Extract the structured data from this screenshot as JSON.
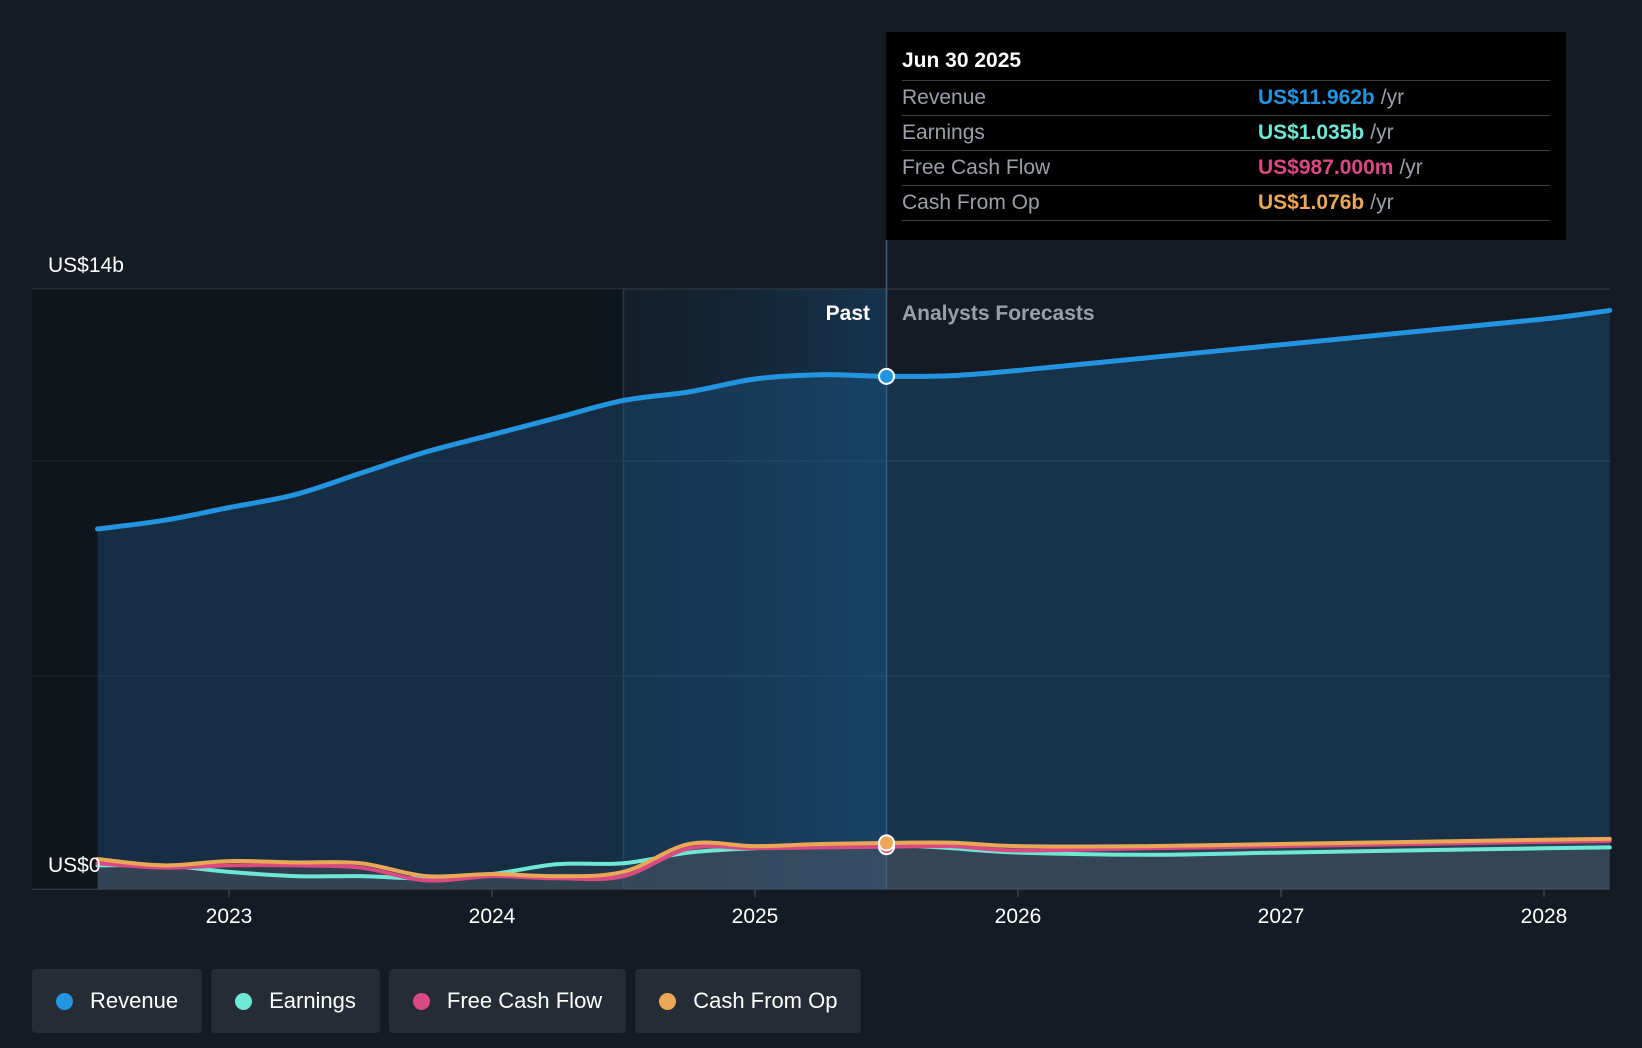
{
  "colors": {
    "revenue": "#2394df",
    "earnings": "#6ee7d6",
    "free_cash_flow": "#d94a82",
    "cash_from_op": "#eaa857",
    "background": "#151b24"
  },
  "tooltip": {
    "date": "Jun 30 2025",
    "rows": [
      {
        "label": "Revenue",
        "value": "US$11.962b",
        "unit": "/yr"
      },
      {
        "label": "Earnings",
        "value": "US$1.035b",
        "unit": "/yr"
      },
      {
        "label": "Free Cash Flow",
        "value": "US$987.000m",
        "unit": "/yr"
      },
      {
        "label": "Cash From Op",
        "value": "US$1.076b",
        "unit": "/yr"
      }
    ]
  },
  "legend": [
    {
      "label": "Revenue",
      "color": "#2394df"
    },
    {
      "label": "Earnings",
      "color": "#6ee7d6"
    },
    {
      "label": "Free Cash Flow",
      "color": "#d94a82"
    },
    {
      "label": "Cash From Op",
      "color": "#eaa857"
    }
  ],
  "chart_data": {
    "type": "line",
    "y_max_label": "US$14b",
    "y_min_label": "US$0",
    "ylim": [
      0,
      14
    ],
    "x_ticks": [
      "2023",
      "2024",
      "2025",
      "2026",
      "2027",
      "2028"
    ],
    "past_label": "Past",
    "forecast_label": "Analysts Forecasts",
    "divider_x": 2025.5,
    "highlight_start": 2024.5,
    "series": [
      {
        "name": "Revenue",
        "key": "revenue",
        "points": [
          [
            2022.5,
            8.4
          ],
          [
            2022.75,
            8.6
          ],
          [
            2023.0,
            8.9
          ],
          [
            2023.25,
            9.2
          ],
          [
            2023.5,
            9.7
          ],
          [
            2023.75,
            10.2
          ],
          [
            2024.0,
            10.6
          ],
          [
            2024.25,
            11.0
          ],
          [
            2024.5,
            11.4
          ],
          [
            2024.75,
            11.6
          ],
          [
            2025.0,
            11.9
          ],
          [
            2025.25,
            12.0
          ],
          [
            2025.5,
            11.962
          ],
          [
            2025.75,
            11.98
          ],
          [
            2026.0,
            12.1
          ],
          [
            2026.5,
            12.4
          ],
          [
            2027.0,
            12.7
          ],
          [
            2027.5,
            13.0
          ],
          [
            2028.0,
            13.3
          ],
          [
            2028.25,
            13.5
          ]
        ]
      },
      {
        "name": "Earnings",
        "key": "earnings",
        "points": [
          [
            2022.5,
            0.55
          ],
          [
            2022.75,
            0.55
          ],
          [
            2023.0,
            0.4
          ],
          [
            2023.25,
            0.3
          ],
          [
            2023.5,
            0.3
          ],
          [
            2023.75,
            0.25
          ],
          [
            2024.0,
            0.35
          ],
          [
            2024.25,
            0.58
          ],
          [
            2024.5,
            0.6
          ],
          [
            2024.75,
            0.85
          ],
          [
            2025.0,
            0.95
          ],
          [
            2025.25,
            1.0
          ],
          [
            2025.5,
            1.035
          ],
          [
            2025.75,
            0.95
          ],
          [
            2026.0,
            0.85
          ],
          [
            2026.5,
            0.8
          ],
          [
            2027.0,
            0.85
          ],
          [
            2027.5,
            0.9
          ],
          [
            2028.0,
            0.95
          ],
          [
            2028.25,
            0.97
          ]
        ]
      },
      {
        "name": "Free Cash Flow",
        "key": "free_cash_flow",
        "points": [
          [
            2022.5,
            0.6
          ],
          [
            2022.75,
            0.5
          ],
          [
            2023.0,
            0.55
          ],
          [
            2023.25,
            0.55
          ],
          [
            2023.5,
            0.5
          ],
          [
            2023.75,
            0.2
          ],
          [
            2024.0,
            0.3
          ],
          [
            2024.25,
            0.25
          ],
          [
            2024.5,
            0.3
          ],
          [
            2024.75,
            0.95
          ],
          [
            2025.0,
            0.95
          ],
          [
            2025.25,
            0.97
          ],
          [
            2025.5,
            0.987
          ],
          [
            2025.75,
            1.0
          ],
          [
            2026.0,
            0.9
          ],
          [
            2026.5,
            0.95
          ],
          [
            2027.0,
            1.0
          ],
          [
            2027.5,
            1.05
          ],
          [
            2028.0,
            1.1
          ],
          [
            2028.25,
            1.12
          ]
        ]
      },
      {
        "name": "Cash From Op",
        "key": "cash_from_op",
        "points": [
          [
            2022.5,
            0.7
          ],
          [
            2022.75,
            0.55
          ],
          [
            2023.0,
            0.65
          ],
          [
            2023.25,
            0.62
          ],
          [
            2023.5,
            0.6
          ],
          [
            2023.75,
            0.3
          ],
          [
            2024.0,
            0.35
          ],
          [
            2024.25,
            0.3
          ],
          [
            2024.5,
            0.4
          ],
          [
            2024.75,
            1.05
          ],
          [
            2025.0,
            1.0
          ],
          [
            2025.25,
            1.05
          ],
          [
            2025.5,
            1.076
          ],
          [
            2025.75,
            1.08
          ],
          [
            2026.0,
            1.0
          ],
          [
            2026.5,
            1.0
          ],
          [
            2027.0,
            1.05
          ],
          [
            2027.5,
            1.1
          ],
          [
            2028.0,
            1.15
          ],
          [
            2028.25,
            1.17
          ]
        ]
      }
    ]
  }
}
